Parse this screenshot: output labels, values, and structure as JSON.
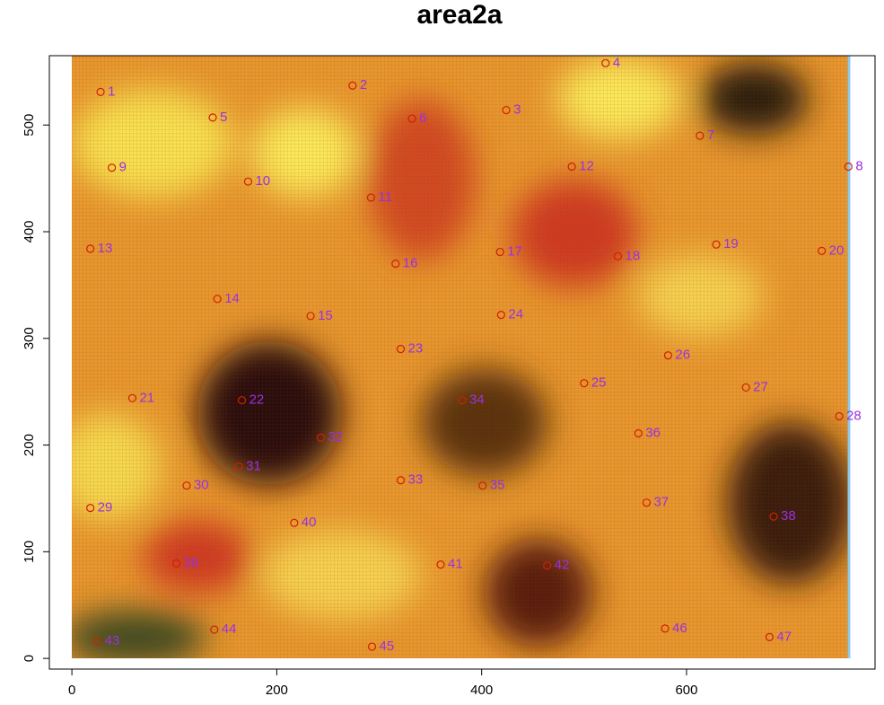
{
  "chart_data": {
    "type": "scatter",
    "title": "area2a",
    "x": [
      28,
      274,
      424,
      521,
      137.5,
      332,
      613,
      758,
      39,
      172,
      292,
      488,
      18,
      142,
      233,
      316,
      418,
      533,
      629,
      732,
      59,
      166,
      321,
      419,
      500,
      582,
      658,
      749,
      18,
      112,
      163,
      243,
      321,
      381,
      401,
      553,
      561,
      685,
      102,
      217,
      360,
      464,
      25,
      139,
      293,
      579,
      681
    ],
    "series": [
      {
        "color": "#d21f00",
        "values": [
          531,
          537,
          514,
          558,
          507,
          506,
          490,
          461,
          460,
          447,
          432,
          461,
          384,
          337,
          321,
          370,
          381,
          377,
          388,
          382,
          244,
          242,
          290,
          322,
          258,
          284,
          254,
          227,
          141,
          162,
          180,
          207,
          167,
          242,
          162,
          211,
          146,
          133,
          89,
          127,
          88,
          87,
          16,
          27,
          11,
          28,
          20
        ]
      }
    ],
    "point_labels": [
      "1",
      "2",
      "3",
      "4",
      "5",
      "6",
      "7",
      "8",
      "9",
      "10",
      "11",
      "12",
      "13",
      "14",
      "15",
      "16",
      "17",
      "18",
      "19",
      "20",
      "21",
      "22",
      "23",
      "24",
      "25",
      "26",
      "27",
      "28",
      "29",
      "30",
      "31",
      "32",
      "33",
      "34",
      "35",
      "36",
      "37",
      "38",
      "39",
      "40",
      "41",
      "42",
      "43",
      "44",
      "45",
      "46",
      "47"
    ],
    "label_color": "#9b30e0",
    "xlim": [
      -22,
      784
    ],
    "ylim": [
      -10,
      565
    ],
    "xticks": [
      0,
      200,
      400,
      600
    ],
    "yticks": [
      0,
      100,
      200,
      300,
      400,
      500
    ]
  }
}
